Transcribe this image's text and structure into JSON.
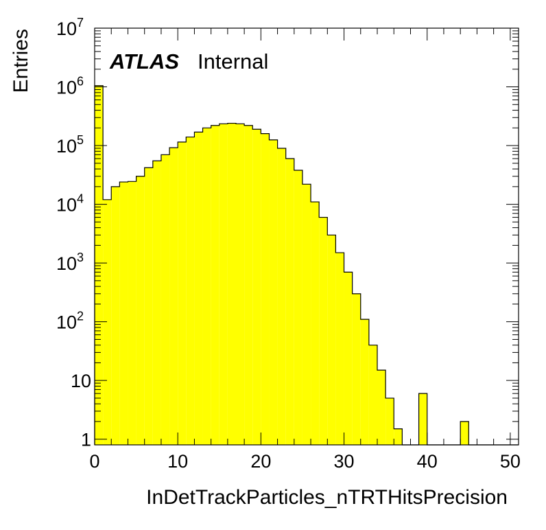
{
  "chart_data": {
    "type": "bar",
    "title": "",
    "xlabel": "InDetTrackParticles_nTRTHitsPrecision",
    "ylabel": "Entries",
    "xlim": [
      0,
      51
    ],
    "ylim": [
      0.8,
      10000000
    ],
    "log_y": true,
    "fill_color": "#ffff00",
    "line_color": "#000000",
    "atlas_label": {
      "bold": "ATLAS",
      "text": "Internal"
    },
    "x_ticks": [
      {
        "value": 0,
        "label": "0"
      },
      {
        "value": 10,
        "label": "10"
      },
      {
        "value": 20,
        "label": "20"
      },
      {
        "value": 30,
        "label": "30"
      },
      {
        "value": 40,
        "label": "40"
      },
      {
        "value": 50,
        "label": "50"
      }
    ],
    "y_ticks": [
      {
        "value": 1,
        "base": "1",
        "exp": ""
      },
      {
        "value": 10,
        "base": "10",
        "exp": ""
      },
      {
        "value": 100,
        "base": "10",
        "exp": "2"
      },
      {
        "value": 1000,
        "base": "10",
        "exp": "3"
      },
      {
        "value": 10000,
        "base": "10",
        "exp": "4"
      },
      {
        "value": 100000,
        "base": "10",
        "exp": "5"
      },
      {
        "value": 1000000,
        "base": "10",
        "exp": "6"
      },
      {
        "value": 10000000,
        "base": "10",
        "exp": "7"
      }
    ],
    "bin_edges_start": 0,
    "bin_width": 1,
    "values": [
      1050000,
      12000,
      20000,
      24000,
      24500,
      30000,
      42000,
      55000,
      70000,
      92000,
      115000,
      140000,
      170000,
      200000,
      220000,
      235000,
      240000,
      235000,
      220000,
      190000,
      160000,
      125000,
      90000,
      60000,
      38000,
      22000,
      11000,
      6000,
      3000,
      1500,
      700,
      300,
      110,
      40,
      15,
      5,
      1.5,
      0,
      0,
      6,
      0,
      0,
      0,
      0,
      2,
      0,
      0,
      0,
      0,
      0,
      0
    ]
  }
}
